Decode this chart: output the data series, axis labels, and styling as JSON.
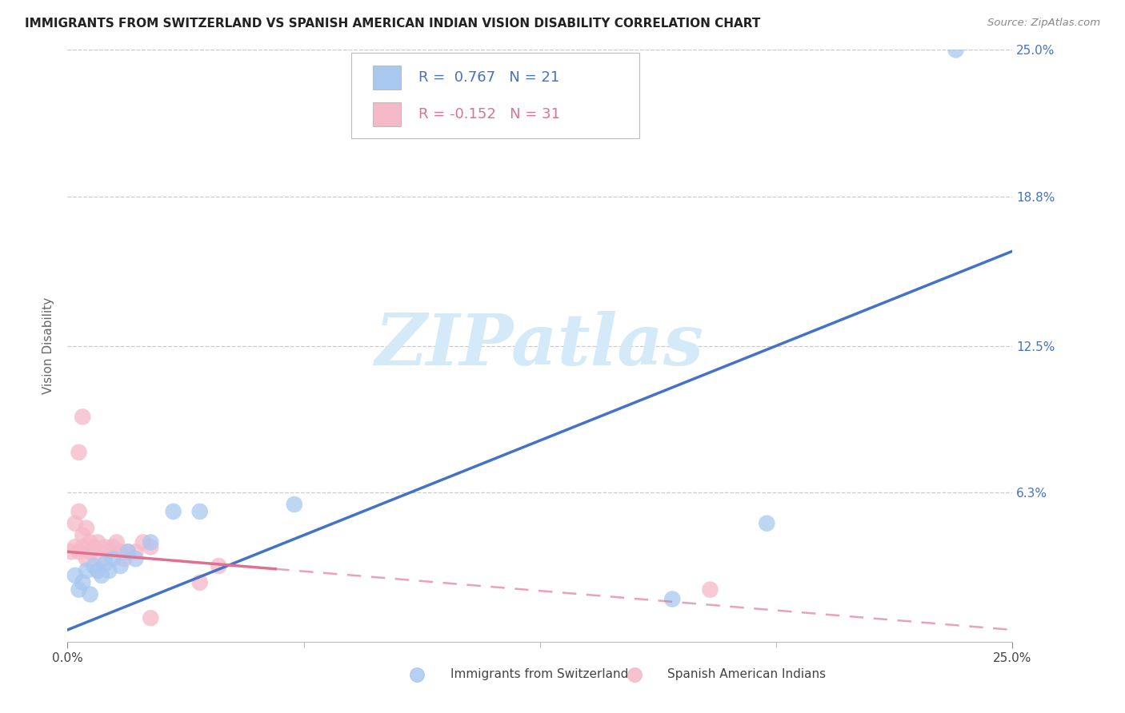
{
  "title": "IMMIGRANTS FROM SWITZERLAND VS SPANISH AMERICAN INDIAN VISION DISABILITY CORRELATION CHART",
  "source": "Source: ZipAtlas.com",
  "ylabel": "Vision Disability",
  "xlim": [
    0.0,
    0.25
  ],
  "ylim": [
    0.0,
    0.25
  ],
  "ytick_positions": [
    0.063,
    0.125,
    0.188,
    0.25
  ],
  "ytick_labels": [
    "6.3%",
    "12.5%",
    "18.8%",
    "25.0%"
  ],
  "xtick_major": [
    0.0,
    0.25
  ],
  "xtick_minor": [
    0.0625,
    0.125,
    0.1875
  ],
  "legend_r1": "R =  0.767",
  "legend_n1": "N = 21",
  "legend_r2": "R = -0.152",
  "legend_n2": "N = 31",
  "blue_color": "#a8c8f0",
  "pink_color": "#f5b8c8",
  "blue_line_color": "#4472c4",
  "pink_line_color": "#e07090",
  "watermark_text": "ZIPatlas",
  "watermark_color": "#d5eaf8",
  "blue_scatter_x": [
    0.002,
    0.003,
    0.004,
    0.005,
    0.006,
    0.007,
    0.008,
    0.009,
    0.01,
    0.011,
    0.012,
    0.014,
    0.016,
    0.018,
    0.022,
    0.028,
    0.035,
    0.06,
    0.185,
    0.235,
    0.16
  ],
  "blue_scatter_y": [
    0.028,
    0.022,
    0.025,
    0.03,
    0.02,
    0.032,
    0.03,
    0.028,
    0.033,
    0.03,
    0.035,
    0.032,
    0.038,
    0.035,
    0.042,
    0.055,
    0.055,
    0.058,
    0.05,
    0.25,
    0.018
  ],
  "pink_scatter_x": [
    0.001,
    0.002,
    0.002,
    0.003,
    0.003,
    0.004,
    0.004,
    0.005,
    0.005,
    0.006,
    0.006,
    0.007,
    0.008,
    0.008,
    0.009,
    0.01,
    0.011,
    0.012,
    0.013,
    0.014,
    0.015,
    0.016,
    0.018,
    0.02,
    0.022,
    0.035,
    0.04,
    0.003,
    0.004,
    0.17,
    0.022
  ],
  "pink_scatter_y": [
    0.038,
    0.04,
    0.05,
    0.038,
    0.055,
    0.045,
    0.04,
    0.035,
    0.048,
    0.042,
    0.038,
    0.04,
    0.042,
    0.03,
    0.035,
    0.04,
    0.038,
    0.04,
    0.042,
    0.038,
    0.035,
    0.038,
    0.038,
    0.042,
    0.04,
    0.025,
    0.032,
    0.08,
    0.095,
    0.022,
    0.01
  ],
  "blue_line_x0": 0.0,
  "blue_line_y0": 0.005,
  "blue_line_x1": 0.25,
  "blue_line_y1": 0.165,
  "pink_line_x0": 0.0,
  "pink_line_y0": 0.038,
  "pink_line_solid_end_x": 0.055,
  "pink_line_x1": 0.25,
  "pink_line_y1": 0.005
}
